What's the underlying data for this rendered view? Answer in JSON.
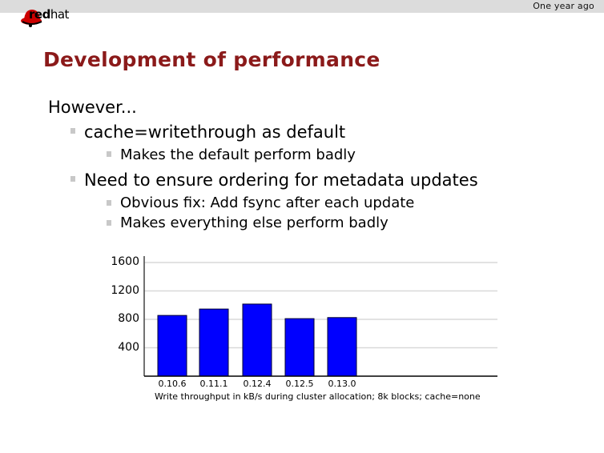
{
  "header": {
    "section": "One year ago",
    "logo": {
      "icon": "redhat-fedora-icon",
      "bold": "red",
      "thin": "hat"
    }
  },
  "slide": {
    "title": "Development of performance",
    "items": [
      {
        "level": 0,
        "text": "However..."
      },
      {
        "level": 1,
        "text": "cache=writethrough as default"
      },
      {
        "level": 2,
        "text": "Makes the default perform badly"
      },
      {
        "level": 1,
        "text": "Need to ensure ordering for metadata updates"
      },
      {
        "level": 2,
        "text": "Obvious fix: Add fsync after each update"
      },
      {
        "level": 2,
        "text": "Makes everything else perform badly"
      }
    ]
  },
  "colors": {
    "title": "#8b1a1a",
    "bar": "#0000ff",
    "grid": "#d9d9d9",
    "topbar": "#dcdcdc"
  },
  "chart_data": {
    "type": "bar",
    "title": "",
    "caption": "Write throughput in kB/s during cluster allocation; 8k blocks; cache=none",
    "categories": [
      "0.10.6",
      "0.11.1",
      "0.12.4",
      "0.12.5",
      "0.13.0"
    ],
    "values": [
      855,
      945,
      1015,
      810,
      825
    ],
    "xlabel": "Write throughput in kB/s during cluster allocation; 8k blocks; cache=none",
    "ylabel": "",
    "yticks": [
      "400",
      "800",
      "1200",
      "1600"
    ],
    "ylim": [
      0,
      1600
    ],
    "grid": true,
    "legend": null
  }
}
